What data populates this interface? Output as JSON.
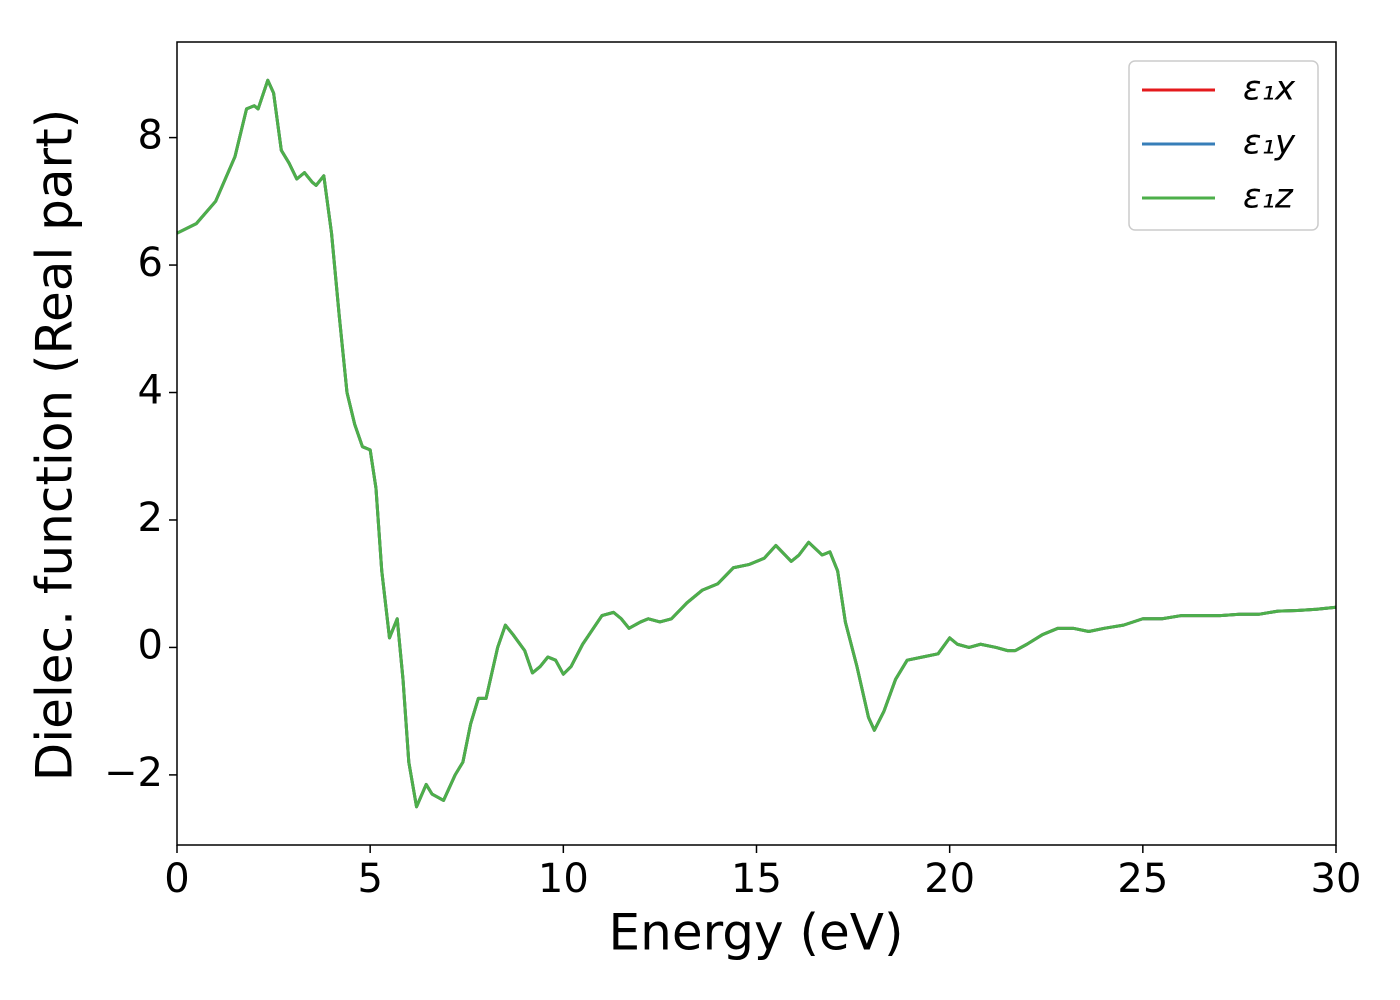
{
  "chart_data": {
    "type": "line",
    "xlabel": "Energy (eV)",
    "ylabel": "Dielec. function (Real part)",
    "x": [
      0,
      0.5,
      1.0,
      1.5,
      1.8,
      2.0,
      2.1,
      2.35,
      2.5,
      2.7,
      2.9,
      3.1,
      3.3,
      3.5,
      3.6,
      3.8,
      4.0,
      4.2,
      4.4,
      4.6,
      4.8,
      5.0,
      5.15,
      5.3,
      5.5,
      5.7,
      5.85,
      6.0,
      6.2,
      6.45,
      6.6,
      6.9,
      7.2,
      7.4,
      7.6,
      7.8,
      8.0,
      8.3,
      8.5,
      8.7,
      9.0,
      9.2,
      9.4,
      9.6,
      9.8,
      10.0,
      10.2,
      10.5,
      11.0,
      11.3,
      11.5,
      11.7,
      12.0,
      12.2,
      12.5,
      12.8,
      13.2,
      13.6,
      14.0,
      14.4,
      14.8,
      15.2,
      15.5,
      15.9,
      16.1,
      16.35,
      16.7,
      16.9,
      17.1,
      17.3,
      17.6,
      17.9,
      18.05,
      18.3,
      18.6,
      18.9,
      19.3,
      19.7,
      20.0,
      20.2,
      20.5,
      20.8,
      21.2,
      21.5,
      21.7,
      22.0,
      22.4,
      22.8,
      23.2,
      23.6,
      24.0,
      24.5,
      25.0,
      25.5,
      26.0,
      26.5,
      27.0,
      27.5,
      28.0,
      28.5,
      29.0,
      29.5,
      30.0
    ],
    "series": [
      {
        "name": "ε₁x",
        "color": "#e41a1c",
        "values": [
          6.5,
          6.65,
          7.0,
          7.7,
          8.45,
          8.5,
          8.45,
          8.9,
          8.7,
          7.8,
          7.6,
          7.35,
          7.45,
          7.3,
          7.25,
          7.4,
          6.5,
          5.2,
          4.0,
          3.5,
          3.15,
          3.1,
          2.5,
          1.2,
          0.15,
          0.45,
          -0.5,
          -1.8,
          -2.5,
          -2.15,
          -2.3,
          -2.4,
          -2.0,
          -1.8,
          -1.2,
          -0.8,
          -0.8,
          0.0,
          0.35,
          0.2,
          -0.05,
          -0.4,
          -0.3,
          -0.15,
          -0.2,
          -0.42,
          -0.3,
          0.05,
          0.5,
          0.55,
          0.45,
          0.3,
          0.4,
          0.45,
          0.4,
          0.45,
          0.7,
          0.9,
          1.0,
          1.25,
          1.3,
          1.4,
          1.6,
          1.35,
          1.45,
          1.65,
          1.45,
          1.5,
          1.2,
          0.4,
          -0.3,
          -1.1,
          -1.3,
          -1.0,
          -0.5,
          -0.2,
          -0.15,
          -0.1,
          0.15,
          0.05,
          0.0,
          0.05,
          0.0,
          -0.05,
          -0.05,
          0.05,
          0.2,
          0.3,
          0.3,
          0.25,
          0.3,
          0.35,
          0.45,
          0.45,
          0.5,
          0.5,
          0.5,
          0.52,
          0.52,
          0.57,
          0.58,
          0.6,
          0.63
        ]
      },
      {
        "name": "ε₁y",
        "color": "#377eb8",
        "values": [
          6.5,
          6.65,
          7.0,
          7.7,
          8.45,
          8.5,
          8.45,
          8.9,
          8.7,
          7.8,
          7.6,
          7.35,
          7.45,
          7.3,
          7.25,
          7.4,
          6.5,
          5.2,
          4.0,
          3.5,
          3.15,
          3.1,
          2.5,
          1.2,
          0.15,
          0.45,
          -0.5,
          -1.8,
          -2.5,
          -2.15,
          -2.3,
          -2.4,
          -2.0,
          -1.8,
          -1.2,
          -0.8,
          -0.8,
          0.0,
          0.35,
          0.2,
          -0.05,
          -0.4,
          -0.3,
          -0.15,
          -0.2,
          -0.42,
          -0.3,
          0.05,
          0.5,
          0.55,
          0.45,
          0.3,
          0.4,
          0.45,
          0.4,
          0.45,
          0.7,
          0.9,
          1.0,
          1.25,
          1.3,
          1.4,
          1.6,
          1.35,
          1.45,
          1.65,
          1.45,
          1.5,
          1.2,
          0.4,
          -0.3,
          -1.1,
          -1.3,
          -1.0,
          -0.5,
          -0.2,
          -0.15,
          -0.1,
          0.15,
          0.05,
          0.0,
          0.05,
          0.0,
          -0.05,
          -0.05,
          0.05,
          0.2,
          0.3,
          0.3,
          0.25,
          0.3,
          0.35,
          0.45,
          0.45,
          0.5,
          0.5,
          0.5,
          0.52,
          0.52,
          0.57,
          0.58,
          0.6,
          0.63
        ]
      },
      {
        "name": "ε₁z",
        "color": "#4daf4a",
        "values": [
          6.5,
          6.65,
          7.0,
          7.7,
          8.45,
          8.5,
          8.45,
          8.9,
          8.7,
          7.8,
          7.6,
          7.35,
          7.45,
          7.3,
          7.25,
          7.4,
          6.5,
          5.2,
          4.0,
          3.5,
          3.15,
          3.1,
          2.5,
          1.2,
          0.15,
          0.45,
          -0.5,
          -1.8,
          -2.5,
          -2.15,
          -2.3,
          -2.4,
          -2.0,
          -1.8,
          -1.2,
          -0.8,
          -0.8,
          0.0,
          0.35,
          0.2,
          -0.05,
          -0.4,
          -0.3,
          -0.15,
          -0.2,
          -0.42,
          -0.3,
          0.05,
          0.5,
          0.55,
          0.45,
          0.3,
          0.4,
          0.45,
          0.4,
          0.45,
          0.7,
          0.9,
          1.0,
          1.25,
          1.3,
          1.4,
          1.6,
          1.35,
          1.45,
          1.65,
          1.45,
          1.5,
          1.2,
          0.4,
          -0.3,
          -1.1,
          -1.3,
          -1.0,
          -0.5,
          -0.2,
          -0.15,
          -0.1,
          0.15,
          0.05,
          0.0,
          0.05,
          0.0,
          -0.05,
          -0.05,
          0.05,
          0.2,
          0.3,
          0.3,
          0.25,
          0.3,
          0.35,
          0.45,
          0.45,
          0.5,
          0.5,
          0.5,
          0.52,
          0.52,
          0.57,
          0.58,
          0.6,
          0.63
        ]
      }
    ],
    "xlim": [
      0,
      30
    ],
    "xticks": [
      0,
      5,
      10,
      15,
      20,
      25,
      30
    ],
    "ylim": [
      -3.1,
      9.5
    ],
    "yticks": [
      {
        "value": -2,
        "label": "−2"
      },
      0,
      2,
      4,
      6,
      8
    ],
    "grid": false,
    "legend": "upper right"
  }
}
